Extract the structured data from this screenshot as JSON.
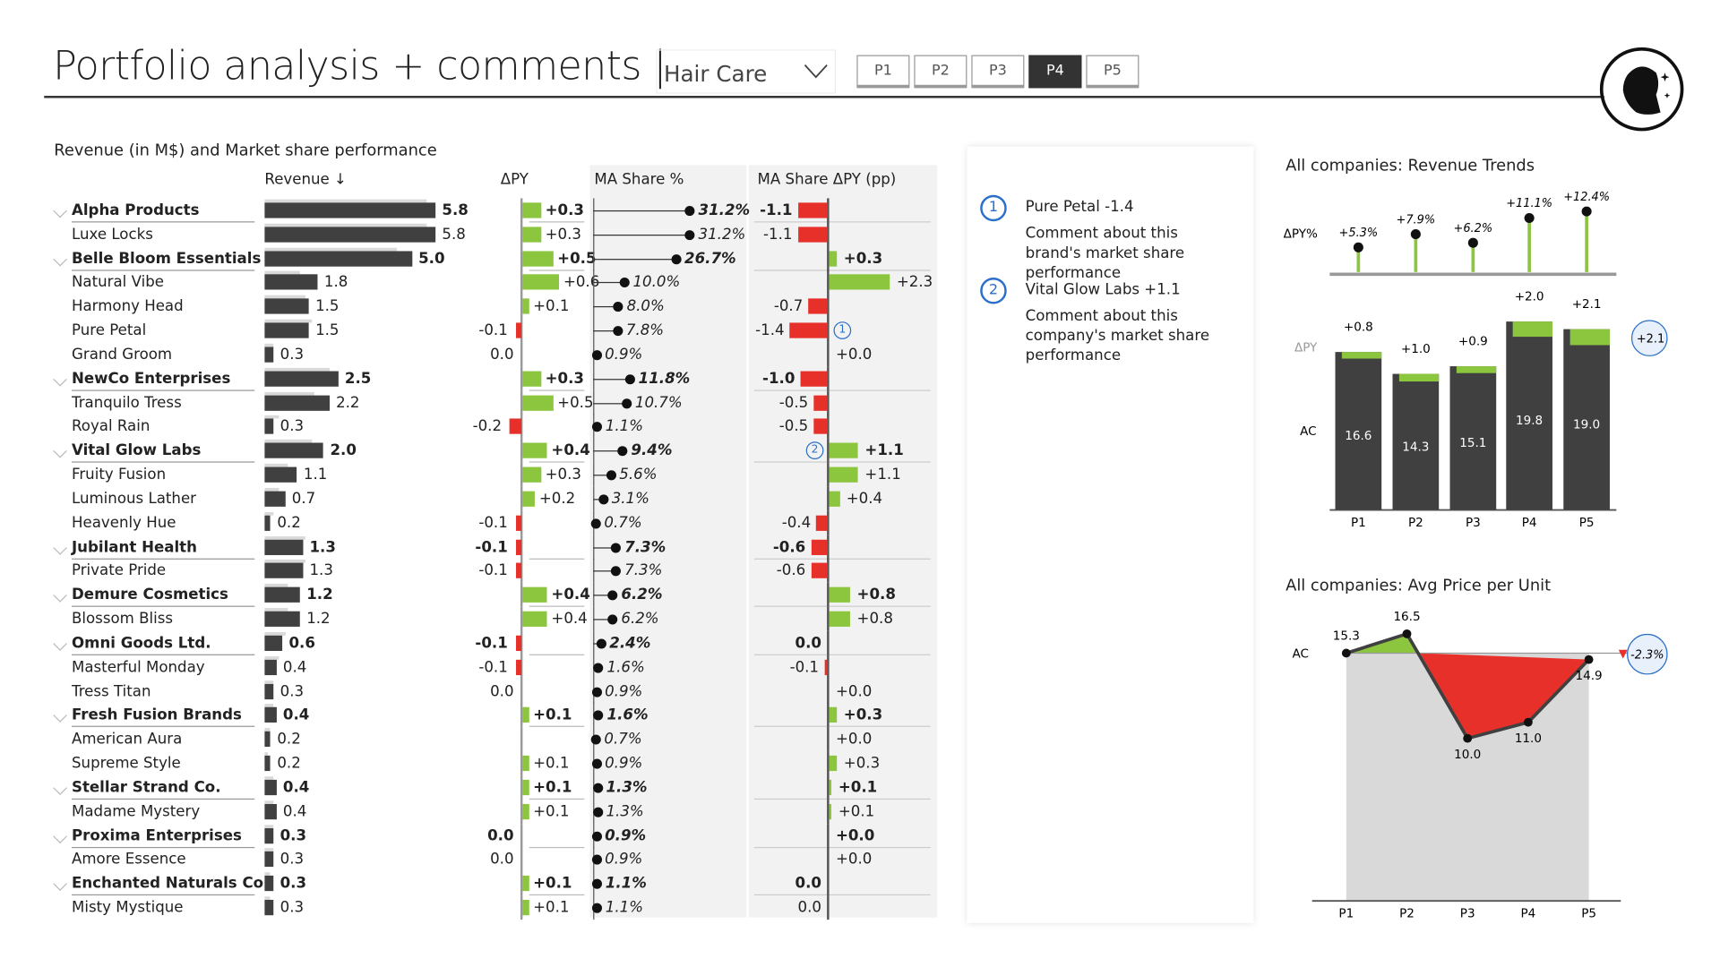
{
  "header": {
    "title": "Portfolio analysis + comments |",
    "category_select": "Hair Care",
    "periods": [
      "P1",
      "P2",
      "P3",
      "P4",
      "P5"
    ],
    "active_period": "P4"
  },
  "colors": {
    "dark": "#404040",
    "green": "#8cc63f",
    "red": "#e8302a",
    "blue": "#2a6fc9",
    "gray": "#d9d9d9"
  },
  "table": {
    "title": "Revenue (in M$) and Market share performance",
    "columns": [
      "Revenue ↓",
      "ΔPY",
      "MA Share %",
      "MA Share ΔPY (pp)"
    ],
    "rows": [
      {
        "name": "Alpha Products",
        "group": true,
        "revenue": "5.8",
        "rev": 5.8,
        "dpy": "+0.3",
        "dpyv": 0.3,
        "share": "31.2%",
        "sharev": 31.2,
        "dshare": "-1.1",
        "dsharev": -1.1
      },
      {
        "name": "Luxe Locks",
        "group": false,
        "revenue": "5.8",
        "rev": 5.8,
        "dpy": "+0.3",
        "dpyv": 0.3,
        "share": "31.2%",
        "sharev": 31.2,
        "dshare": "-1.1",
        "dsharev": -1.1
      },
      {
        "name": "Belle Bloom Essentials",
        "group": true,
        "revenue": "5.0",
        "rev": 5.0,
        "dpy": "+0.5",
        "dpyv": 0.5,
        "share": "26.7%",
        "sharev": 26.7,
        "dshare": "+0.3",
        "dsharev": 0.3
      },
      {
        "name": "Natural Vibe",
        "group": false,
        "revenue": "1.8",
        "rev": 1.8,
        "dpy": "+0.6",
        "dpyv": 0.6,
        "share": "10.0%",
        "sharev": 10.0,
        "dshare": "+2.3",
        "dsharev": 2.3
      },
      {
        "name": "Harmony Head",
        "group": false,
        "revenue": "1.5",
        "rev": 1.5,
        "dpy": "+0.1",
        "dpyv": 0.1,
        "share": "8.0%",
        "sharev": 8.0,
        "dshare": "-0.7",
        "dsharev": -0.7
      },
      {
        "name": "Pure Petal",
        "group": false,
        "revenue": "1.5",
        "rev": 1.5,
        "dpy": "-0.1",
        "dpyv": -0.1,
        "share": "7.8%",
        "sharev": 7.8,
        "dshare": "-1.4",
        "dsharev": -1.4,
        "comment": "1"
      },
      {
        "name": "Grand Groom",
        "group": false,
        "revenue": "0.3",
        "rev": 0.3,
        "dpy": "0.0",
        "dpyv": 0,
        "share": "0.9%",
        "sharev": 0.9,
        "dshare": "+0.0",
        "dsharev": 0
      },
      {
        "name": "NewCo Enterprises",
        "group": true,
        "revenue": "2.5",
        "rev": 2.5,
        "dpy": "+0.3",
        "dpyv": 0.3,
        "share": "11.8%",
        "sharev": 11.8,
        "dshare": "-1.0",
        "dsharev": -1.0
      },
      {
        "name": "Tranquilo Tress",
        "group": false,
        "revenue": "2.2",
        "rev": 2.2,
        "dpy": "+0.5",
        "dpyv": 0.5,
        "share": "10.7%",
        "sharev": 10.7,
        "dshare": "-0.5",
        "dsharev": -0.5
      },
      {
        "name": "Royal Rain",
        "group": false,
        "revenue": "0.3",
        "rev": 0.3,
        "dpy": "-0.2",
        "dpyv": -0.2,
        "share": "1.1%",
        "sharev": 1.1,
        "dshare": "-0.5",
        "dsharev": -0.5
      },
      {
        "name": "Vital Glow Labs",
        "group": true,
        "revenue": "2.0",
        "rev": 2.0,
        "dpy": "+0.4",
        "dpyv": 0.4,
        "share": "9.4%",
        "sharev": 9.4,
        "dshare": "+1.1",
        "dsharev": 1.1,
        "comment": "2"
      },
      {
        "name": "Fruity Fusion",
        "group": false,
        "revenue": "1.1",
        "rev": 1.1,
        "dpy": "+0.3",
        "dpyv": 0.3,
        "share": "5.6%",
        "sharev": 5.6,
        "dshare": "+1.1",
        "dsharev": 1.1
      },
      {
        "name": "Luminous Lather",
        "group": false,
        "revenue": "0.7",
        "rev": 0.7,
        "dpy": "+0.2",
        "dpyv": 0.2,
        "share": "3.1%",
        "sharev": 3.1,
        "dshare": "+0.4",
        "dsharev": 0.4
      },
      {
        "name": "Heavenly Hue",
        "group": false,
        "revenue": "0.2",
        "rev": 0.2,
        "dpy": "-0.1",
        "dpyv": -0.1,
        "share": "0.7%",
        "sharev": 0.7,
        "dshare": "-0.4",
        "dsharev": -0.4
      },
      {
        "name": "Jubilant Health",
        "group": true,
        "revenue": "1.3",
        "rev": 1.3,
        "dpy": "-0.1",
        "dpyv": -0.1,
        "share": "7.3%",
        "sharev": 7.3,
        "dshare": "-0.6",
        "dsharev": -0.6
      },
      {
        "name": "Private Pride",
        "group": false,
        "revenue": "1.3",
        "rev": 1.3,
        "dpy": "-0.1",
        "dpyv": -0.1,
        "share": "7.3%",
        "sharev": 7.3,
        "dshare": "-0.6",
        "dsharev": -0.6
      },
      {
        "name": "Demure Cosmetics",
        "group": true,
        "revenue": "1.2",
        "rev": 1.2,
        "dpy": "+0.4",
        "dpyv": 0.4,
        "share": "6.2%",
        "sharev": 6.2,
        "dshare": "+0.8",
        "dsharev": 0.8
      },
      {
        "name": "Blossom Bliss",
        "group": false,
        "revenue": "1.2",
        "rev": 1.2,
        "dpy": "+0.4",
        "dpyv": 0.4,
        "share": "6.2%",
        "sharev": 6.2,
        "dshare": "+0.8",
        "dsharev": 0.8
      },
      {
        "name": "Omni Goods Ltd.",
        "group": true,
        "revenue": "0.6",
        "rev": 0.6,
        "dpy": "-0.1",
        "dpyv": -0.1,
        "share": "2.4%",
        "sharev": 2.4,
        "dshare": "0.0",
        "dsharev": 0
      },
      {
        "name": "Masterful Monday",
        "group": false,
        "revenue": "0.4",
        "rev": 0.4,
        "dpy": "-0.1",
        "dpyv": -0.1,
        "share": "1.6%",
        "sharev": 1.6,
        "dshare": "-0.1",
        "dsharev": -0.1
      },
      {
        "name": "Tress Titan",
        "group": false,
        "revenue": "0.3",
        "rev": 0.3,
        "dpy": "0.0",
        "dpyv": 0,
        "share": "0.9%",
        "sharev": 0.9,
        "dshare": "+0.0",
        "dsharev": 0
      },
      {
        "name": "Fresh Fusion Brands",
        "group": true,
        "revenue": "0.4",
        "rev": 0.4,
        "dpy": "+0.1",
        "dpyv": 0.1,
        "share": "1.6%",
        "sharev": 1.6,
        "dshare": "+0.3",
        "dsharev": 0.3
      },
      {
        "name": "American Aura",
        "group": false,
        "revenue": "0.2",
        "rev": 0.2,
        "dpy": "",
        "dpyv": 0,
        "share": "0.7%",
        "sharev": 0.7,
        "dshare": "+0.0",
        "dsharev": 0
      },
      {
        "name": "Supreme Style",
        "group": false,
        "revenue": "0.2",
        "rev": 0.2,
        "dpy": "+0.1",
        "dpyv": 0.1,
        "share": "0.9%",
        "sharev": 0.9,
        "dshare": "+0.3",
        "dsharev": 0.3
      },
      {
        "name": "Stellar Strand Co.",
        "group": true,
        "revenue": "0.4",
        "rev": 0.4,
        "dpy": "+0.1",
        "dpyv": 0.1,
        "share": "1.3%",
        "sharev": 1.3,
        "dshare": "+0.1",
        "dsharev": 0.1
      },
      {
        "name": "Madame Mystery",
        "group": false,
        "revenue": "0.4",
        "rev": 0.4,
        "dpy": "+0.1",
        "dpyv": 0.1,
        "share": "1.3%",
        "sharev": 1.3,
        "dshare": "+0.1",
        "dsharev": 0.1
      },
      {
        "name": "Proxima Enterprises",
        "group": true,
        "revenue": "0.3",
        "rev": 0.3,
        "dpy": "0.0",
        "dpyv": 0,
        "share": "0.9%",
        "sharev": 0.9,
        "dshare": "+0.0",
        "dsharev": 0
      },
      {
        "name": "Amore Essence",
        "group": false,
        "revenue": "0.3",
        "rev": 0.3,
        "dpy": "0.0",
        "dpyv": 0,
        "share": "0.9%",
        "sharev": 0.9,
        "dshare": "+0.0",
        "dsharev": 0
      },
      {
        "name": "Enchanted Naturals Co.",
        "group": true,
        "revenue": "0.3",
        "rev": 0.3,
        "dpy": "+0.1",
        "dpyv": 0.1,
        "share": "1.1%",
        "sharev": 1.1,
        "dshare": "0.0",
        "dsharev": 0
      },
      {
        "name": "Misty Mystique",
        "group": false,
        "revenue": "0.3",
        "rev": 0.3,
        "dpy": "+0.1",
        "dpyv": 0.1,
        "share": "1.1%",
        "sharev": 1.1,
        "dshare": "0.0",
        "dsharev": 0
      }
    ]
  },
  "comments": [
    {
      "num": "1",
      "title": "Pure Petal -1.4",
      "text": "Comment about this brand's market share performance"
    },
    {
      "num": "2",
      "title": "Vital Glow Labs +1.1",
      "text": "Comment about this company's market share performance"
    }
  ],
  "chart_data": [
    {
      "type": "bar",
      "title": "All companies: Revenue Trends",
      "categories": [
        "P1",
        "P2",
        "P3",
        "P4",
        "P5"
      ],
      "row_labels": {
        "dpy_pct": "ΔPY%",
        "dpy": "ΔPY",
        "ac": "AC"
      },
      "ac": [
        16.6,
        14.3,
        15.1,
        19.8,
        19.0
      ],
      "ac_labels": [
        "16.6",
        "14.3",
        "15.1",
        "19.8",
        "19.0"
      ],
      "dpy": [
        0.8,
        1.0,
        0.9,
        2.0,
        2.1
      ],
      "dpy_labels": [
        "+0.8",
        "+1.0",
        "+0.9",
        "+2.0",
        "+2.1"
      ],
      "dpy_pct": [
        5.3,
        7.9,
        6.2,
        11.1,
        12.4
      ],
      "dpy_pct_labels": [
        "+5.3%",
        "+7.9%",
        "+6.2%",
        "+11.1%",
        "+12.4%"
      ],
      "highlight": "+2.1"
    },
    {
      "type": "area",
      "title": "All companies: Avg Price per Unit",
      "categories": [
        "P1",
        "P2",
        "P3",
        "P4",
        "P5"
      ],
      "row_label": "AC",
      "values": [
        15.3,
        16.5,
        10.0,
        11.0,
        14.9
      ],
      "value_labels": [
        "15.3",
        "16.5",
        "10.0",
        "11.0",
        "14.9"
      ],
      "reference": 15.3,
      "highlight": "-2.3%"
    }
  ]
}
